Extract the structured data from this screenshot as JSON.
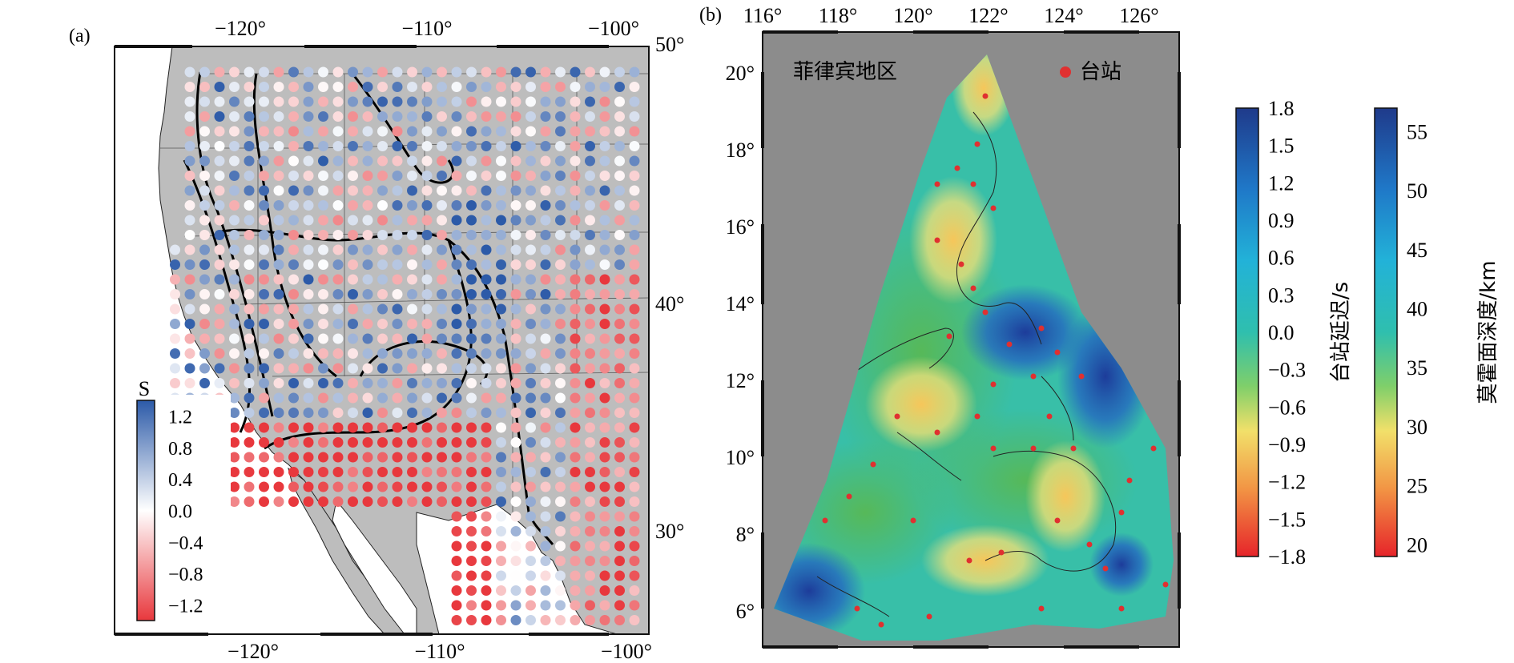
{
  "panel_a": {
    "label": "(a)",
    "lon_ticks_top": [
      "−120°",
      "−110°",
      "−100°"
    ],
    "lon_ticks_bottom": [
      "−120°",
      "−110°",
      "−100°"
    ],
    "lat_ticks_right": [
      "50°",
      "40°",
      "30°"
    ],
    "colorbar_title": "S",
    "colorbar_ticks": [
      "1.2",
      "0.8",
      "0.4",
      "0.0",
      "−0.4",
      "−0.8",
      "−1.2"
    ],
    "colorbar_range": [
      -1.4,
      1.4
    ],
    "colors": {
      "ocean": "#ffffff",
      "land": "#bdbdbd",
      "positive": "#2c5aa8",
      "negative": "#e8383d",
      "zero": "#ffffff"
    }
  },
  "panel_b": {
    "label": "(b)",
    "region_label": "菲律宾地区",
    "legend_label": "台站",
    "lon_ticks_top": [
      "116°",
      "118°",
      "120°",
      "122°",
      "124°",
      "126°"
    ],
    "lat_ticks_left": [
      "20°",
      "18°",
      "16°",
      "14°",
      "12°",
      "10°",
      "8°",
      "6°"
    ],
    "colors": {
      "background": "#8c8c8c",
      "station": "#e03030"
    }
  },
  "colorbar_delay": {
    "title": "台站延迟/s",
    "ticks": [
      "1.8",
      "1.5",
      "1.2",
      "0.9",
      "0.6",
      "0.3",
      "0.0",
      "−0.3",
      "−0.6",
      "−0.9",
      "−1.2",
      "−1.5",
      "−1.8"
    ],
    "range": [
      -1.8,
      1.8
    ]
  },
  "colorbar_moho": {
    "title": "莫霍面深度/km",
    "ticks": [
      "55",
      "50",
      "45",
      "40",
      "35",
      "30",
      "25",
      "20"
    ],
    "range": [
      19,
      57
    ]
  }
}
